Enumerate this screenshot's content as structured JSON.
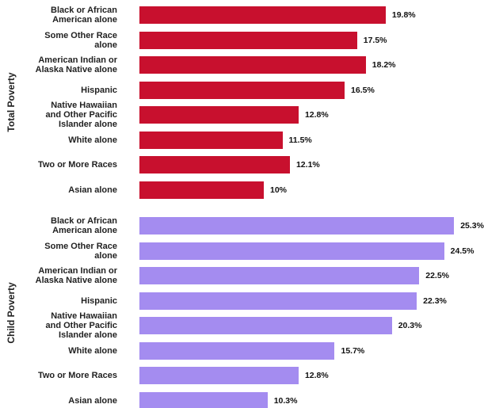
{
  "chart_data": [
    {
      "type": "bar",
      "orientation": "horizontal",
      "ylabel": "Total Poverty",
      "color": "#c8102e",
      "categories": [
        "Black or African\nAmerican alone",
        "Some Other Race\nalone",
        "American Indian or\nAlaska Native alone",
        "Hispanic",
        "Native Hawaiian\nand Other Pacific\nIslander alone",
        "White alone",
        "Two or More Races",
        "Asian alone"
      ],
      "values": [
        19.8,
        17.5,
        18.2,
        16.5,
        12.8,
        11.5,
        12.1,
        10
      ],
      "value_labels": [
        "19.8%",
        "17.5%",
        "18.2%",
        "16.5%",
        "12.8%",
        "11.5%",
        "12.1%",
        "10%"
      ]
    },
    {
      "type": "bar",
      "orientation": "horizontal",
      "ylabel": "Child Poverty",
      "color": "#a48cf0",
      "categories": [
        "Black or African\nAmerican alone",
        "Some Other Race\nalone",
        "American Indian or\nAlaska Native alone",
        "Hispanic",
        "Native Hawaiian\nand Other Pacific\nIslander alone",
        "White alone",
        "Two or More Races",
        "Asian alone"
      ],
      "values": [
        25.3,
        24.5,
        22.5,
        22.3,
        20.3,
        15.7,
        12.8,
        10.3
      ],
      "value_labels": [
        "25.3%",
        "24.5%",
        "22.5%",
        "22.3%",
        "20.3%",
        "15.7%",
        "12.8%",
        "10.3%"
      ]
    }
  ]
}
